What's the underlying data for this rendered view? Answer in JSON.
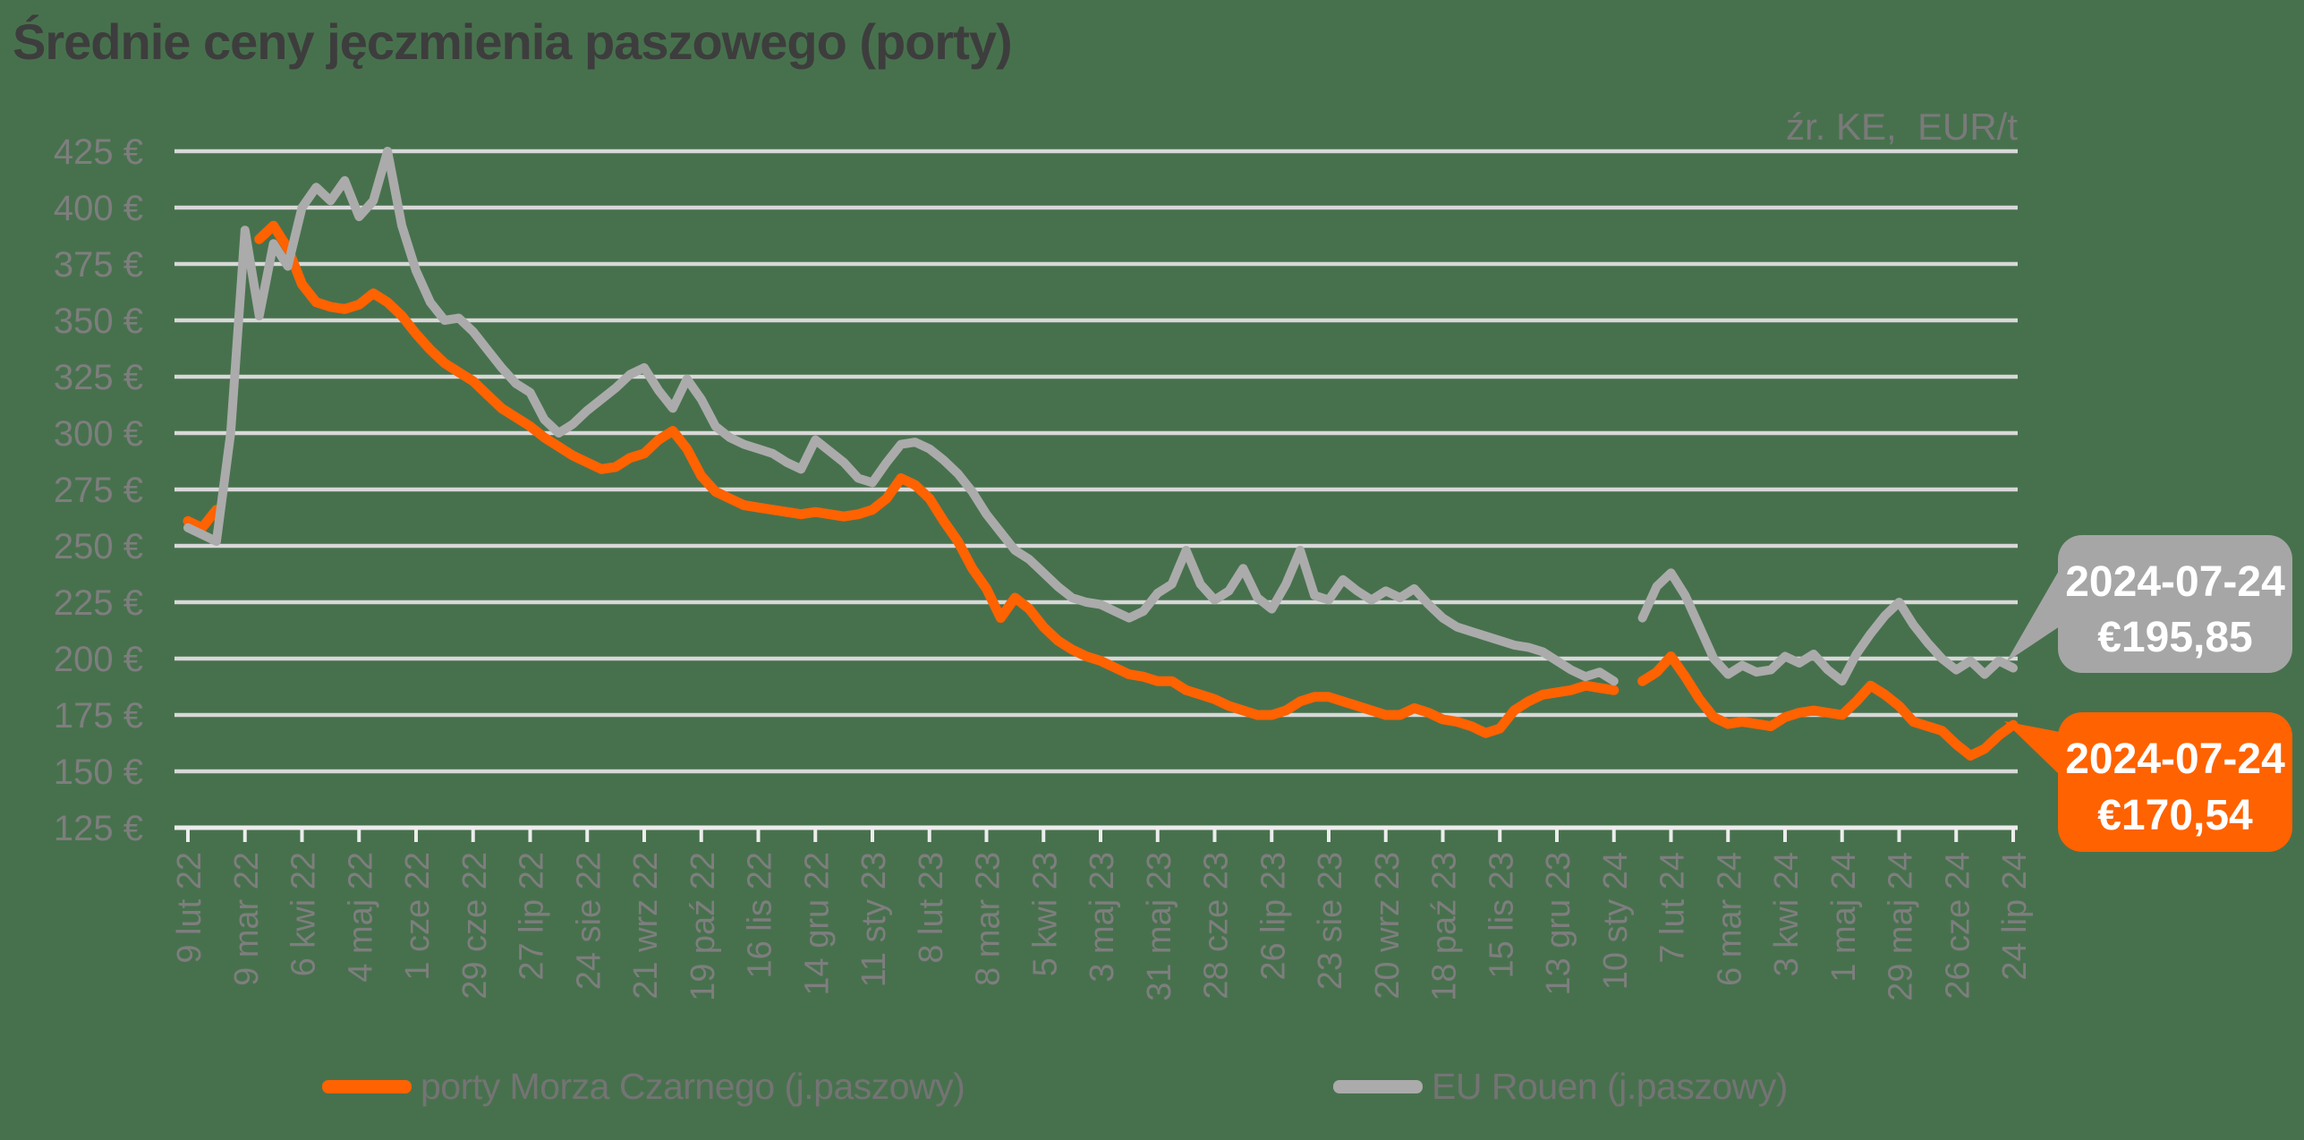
{
  "title": "Średnie ceny jęczmienia paszowego (porty)",
  "source_note": "źr. KE,  EUR/t",
  "colors": {
    "background": "#47714D",
    "gridline": "#D8D8D8",
    "axis_line": "#ECECEC",
    "axis_text": "#7E7E7E",
    "title_text": "#3D3D3D",
    "black_sea_orange": "#FF6200",
    "rouen_gray": "#ABABAB",
    "callout_gray": "#A6A6A6",
    "callout_text": "#FFFFFF"
  },
  "legend": {
    "items": [
      {
        "label": "porty Morza Czarnego (j.paszowy)",
        "color": "#FF6200"
      },
      {
        "label": "EU Rouen (j.paszowy)",
        "color": "#ABABAB"
      }
    ]
  },
  "callouts": {
    "rouen": {
      "date": "2024-07-24",
      "value": "€195,85",
      "color": "#A6A6A6"
    },
    "black_sea": {
      "date": "2024-07-24",
      "value": "€170,54",
      "color": "#FF6200"
    }
  },
  "chart_data": {
    "type": "line",
    "title": "Średnie ceny jęczmienia paszowego (porty)",
    "unit": "EUR/t",
    "ylim": [
      125,
      425
    ],
    "y_ticks": [
      425,
      400,
      375,
      350,
      325,
      300,
      275,
      250,
      225,
      200,
      175,
      150,
      125
    ],
    "y_tick_suffix": " €",
    "grid": true,
    "legend_position": "bottom",
    "x_note": "weekly points, one x tick label every 4 weeks",
    "x_tick_labels": [
      "9 lut 22",
      "9 mar 22",
      "6 kwi 22",
      "4 maj 22",
      "1 cze 22",
      "29 cze 22",
      "27 lip 22",
      "24 sie 22",
      "21 wrz 22",
      "19 paź 22",
      "16 lis 22",
      "14 gru 22",
      "11 sty 23",
      "8 lut 23",
      "8 mar 23",
      "5 kwi 23",
      "3 maj 23",
      "31 maj 23",
      "28 cze 23",
      "26 lip 23",
      "23 sie 23",
      "20 wrz 23",
      "18 paź 23",
      "15 lis 23",
      "13 gru 23",
      "10 sty 24",
      "7 lut 24",
      "6 mar 24",
      "3 kwi 24",
      "1 maj 24",
      "29 maj 24",
      "26 cze 24",
      "24 lip 24"
    ],
    "series": [
      {
        "name": "porty Morza Czarnego (j.paszowy)",
        "color": "#FF6200",
        "stroke_width": 11,
        "last_point": {
          "date": "2024-07-24",
          "value": 170.54
        },
        "values": [
          261,
          258,
          266,
          null,
          null,
          386,
          392,
          382,
          366,
          358,
          356,
          355,
          357,
          362,
          358,
          352,
          344,
          337,
          331,
          327,
          323,
          317,
          311,
          307,
          303,
          298,
          294,
          290,
          287,
          284,
          285,
          289,
          291,
          297,
          301,
          293,
          281,
          274,
          271,
          268,
          267,
          266,
          265,
          264,
          265,
          264,
          263,
          264,
          266,
          271,
          280,
          277,
          271,
          261,
          252,
          240,
          231,
          218,
          227,
          222,
          214,
          208,
          204,
          201,
          199,
          196,
          193,
          192,
          190,
          190,
          186,
          184,
          182,
          179,
          177,
          175,
          175,
          177,
          181,
          183,
          183,
          181,
          179,
          177,
          175,
          175,
          178,
          176,
          173,
          172,
          170,
          167,
          169,
          177,
          181,
          184,
          185,
          186,
          188,
          187,
          186,
          null,
          190,
          194,
          201,
          192,
          182,
          174,
          171,
          172,
          171,
          170,
          174,
          176,
          177,
          176,
          175,
          181,
          188,
          184,
          179,
          172,
          170,
          168,
          162,
          157,
          160,
          166,
          170.54
        ]
      },
      {
        "name": "EU Rouen (j.paszowy)",
        "color": "#ABABAB",
        "stroke_width": 10,
        "last_point": {
          "date": "2024-07-24",
          "value": 195.85
        },
        "values": [
          258,
          255,
          252,
          300,
          390,
          352,
          384,
          374,
          400,
          409,
          403,
          412,
          396,
          403,
          425,
          392,
          372,
          358,
          350,
          351,
          345,
          337,
          329,
          322,
          318,
          306,
          300,
          304,
          310,
          315,
          320,
          326,
          329,
          319,
          311,
          324,
          315,
          303,
          298,
          295,
          293,
          291,
          287,
          284,
          297,
          292,
          287,
          280,
          278,
          287,
          295,
          296,
          293,
          288,
          282,
          274,
          264,
          256,
          248,
          244,
          238,
          232,
          227,
          225,
          224,
          221,
          218,
          221,
          229,
          233,
          248,
          233,
          226,
          230,
          240,
          227,
          222,
          233,
          248,
          228,
          226,
          235,
          230,
          226,
          230,
          227,
          231,
          224,
          218,
          214,
          212,
          210,
          208,
          206,
          205,
          203,
          199,
          195,
          192,
          194,
          190,
          null,
          218,
          232,
          238,
          228,
          214,
          200,
          193,
          197,
          194,
          195,
          201,
          198,
          202,
          195,
          190,
          202,
          211,
          219,
          225,
          215,
          207,
          200,
          195,
          199,
          193,
          199,
          195.85
        ]
      }
    ]
  }
}
